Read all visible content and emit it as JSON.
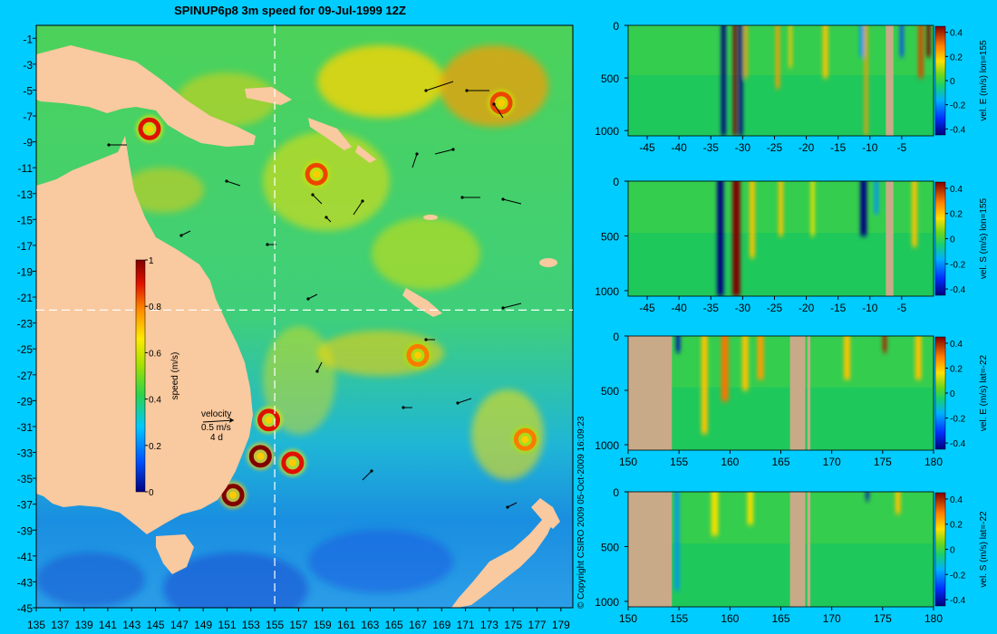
{
  "title": "SPINUP6p8 3m speed for 09-Jul-1999 12Z",
  "copyright": "© Copyright CSIRO 2009   05-Oct-2009 16:09:23",
  "colors": {
    "background": "#00ccff",
    "land": "#f9c99f",
    "section_land": "#c8aa88",
    "guide_line": "#ffffff"
  },
  "chart_data": [
    {
      "type": "heatmap",
      "name": "speed-map",
      "title": "SPINUP6p8 3m speed for 09-Jul-1999 12Z",
      "xlim": [
        135,
        180
      ],
      "ylim": [
        -45,
        0
      ],
      "xticks": [
        "135",
        "137",
        "139",
        "141",
        "143",
        "145",
        "147",
        "149",
        "151",
        "153",
        "155",
        "157",
        "159",
        "161",
        "163",
        "165",
        "167",
        "169",
        "171",
        "173",
        "175",
        "177",
        "179"
      ],
      "yticks": [
        "-1",
        "-3",
        "-5",
        "-7",
        "-9",
        "-11",
        "-13",
        "-15",
        "-17",
        "-19",
        "-21",
        "-23",
        "-25",
        "-27",
        "-29",
        "-31",
        "-33",
        "-35",
        "-37",
        "-39",
        "-41",
        "-43",
        "-45"
      ],
      "colorbar": {
        "label": "speed (m/s)",
        "range": [
          0,
          1
        ],
        "ticks": [
          "0",
          "0.2",
          "0.4",
          "0.6",
          "0.8",
          "1"
        ]
      },
      "velocity_legend": {
        "title": "velocity",
        "speed": "0.5 m/s",
        "duration": "4 d"
      },
      "guides": {
        "lon": 155,
        "lat": -22
      },
      "eddies": [
        {
          "lon": 144.5,
          "lat": -8.0,
          "speed": 0.9
        },
        {
          "lon": 153.8,
          "lat": -33.3,
          "speed": 1.0
        },
        {
          "lon": 151.5,
          "lat": -36.3,
          "speed": 1.0
        },
        {
          "lon": 154.5,
          "lat": -30.5,
          "speed": 0.9
        },
        {
          "lon": 156.5,
          "lat": -33.8,
          "speed": 0.9
        },
        {
          "lon": 158.5,
          "lat": -11.5,
          "speed": 0.85
        },
        {
          "lon": 174.0,
          "lat": -6.0,
          "speed": 0.85
        },
        {
          "lon": 176.0,
          "lat": -32.0,
          "speed": 0.8
        },
        {
          "lon": 167.0,
          "lat": -25.5,
          "speed": 0.8
        }
      ]
    },
    {
      "type": "heatmap",
      "name": "section-u-lon155",
      "colorbar_label": "vel. E (m/s) lon=155",
      "xlim": [
        -48,
        0
      ],
      "ylim": [
        1050,
        0
      ],
      "xticks": [
        "-45",
        "-40",
        "-35",
        "-30",
        "-25",
        "-20",
        "-15",
        "-10",
        "-5"
      ],
      "yticks": [
        "0",
        "500",
        "1000"
      ],
      "cticks": [
        "0.4",
        "0.2",
        "0",
        "-0.2",
        "-0.4"
      ],
      "crange": [
        -0.45,
        0.45
      ],
      "land": [
        {
          "x0": -7.5,
          "x1": -6.3,
          "depth": 1050
        }
      ],
      "bands": [
        {
          "x": -33.0,
          "v": -0.5,
          "d": 1050,
          "w": 0.7
        },
        {
          "x": -31.2,
          "v": 0.45,
          "d": 1050,
          "w": 0.6
        },
        {
          "x": -30.3,
          "v": -0.45,
          "d": 1050,
          "w": 0.6
        },
        {
          "x": -29.5,
          "v": 0.25,
          "d": 500,
          "w": 0.5
        },
        {
          "x": -24.5,
          "v": 0.25,
          "d": 600,
          "w": 0.6
        },
        {
          "x": -22.5,
          "v": 0.2,
          "d": 400,
          "w": 0.5
        },
        {
          "x": -17.0,
          "v": 0.2,
          "d": 500,
          "w": 0.8
        },
        {
          "x": -11.3,
          "v": -0.2,
          "d": 300,
          "w": 0.6
        },
        {
          "x": -10.6,
          "v": 0.25,
          "d": 1050,
          "w": 0.5
        },
        {
          "x": -5.0,
          "v": -0.3,
          "d": 300,
          "w": 0.5
        },
        {
          "x": -2.0,
          "v": 0.35,
          "d": 500,
          "w": 0.8
        },
        {
          "x": -0.8,
          "v": 0.45,
          "d": 300,
          "w": 0.6
        }
      ]
    },
    {
      "type": "heatmap",
      "name": "section-v-lon155",
      "colorbar_label": "vel. S (m/s) lon=155",
      "xlim": [
        -48,
        0
      ],
      "ylim": [
        1050,
        0
      ],
      "xticks": [
        "-45",
        "-40",
        "-35",
        "-30",
        "-25",
        "-20",
        "-15",
        "-10",
        "-5"
      ],
      "yticks": [
        "0",
        "500",
        "1000"
      ],
      "cticks": [
        "0.4",
        "0.2",
        "0",
        "-0.2",
        "-0.4"
      ],
      "crange": [
        -0.45,
        0.45
      ],
      "land": [
        {
          "x0": -7.5,
          "x1": -6.3,
          "depth": 1050
        }
      ],
      "bands": [
        {
          "x": -33.5,
          "v": -0.45,
          "d": 1050,
          "w": 1.0
        },
        {
          "x": -31.0,
          "v": 0.45,
          "d": 1050,
          "w": 1.2
        },
        {
          "x": -28.5,
          "v": 0.2,
          "d": 700,
          "w": 0.8
        },
        {
          "x": -24.0,
          "v": 0.2,
          "d": 500,
          "w": 0.7
        },
        {
          "x": -19.0,
          "v": 0.15,
          "d": 500,
          "w": 0.6
        },
        {
          "x": -11.0,
          "v": -0.45,
          "d": 500,
          "w": 1.0
        },
        {
          "x": -9.0,
          "v": -0.2,
          "d": 300,
          "w": 0.6
        },
        {
          "x": -3.0,
          "v": 0.2,
          "d": 600,
          "w": 0.8
        }
      ]
    },
    {
      "type": "heatmap",
      "name": "section-u-lat-22",
      "colorbar_label": "vel. E (m/s) lat=-22",
      "xlim": [
        150,
        180
      ],
      "ylim": [
        1050,
        0
      ],
      "xticks": [
        "150",
        "155",
        "160",
        "165",
        "170",
        "175",
        "180"
      ],
      "yticks": [
        "0",
        "500",
        "1000"
      ],
      "cticks": [
        "0.4",
        "0.2",
        "0",
        "-0.2",
        "-0.4"
      ],
      "crange": [
        -0.45,
        0.45
      ],
      "land": [
        {
          "x0": 150,
          "x1": 154.3,
          "depth": 1050
        },
        {
          "x0": 165.9,
          "x1": 167.4,
          "depth": 1050
        },
        {
          "x0": 167.6,
          "x1": 167.9,
          "depth": 1050
        }
      ],
      "bands": [
        {
          "x": 154.9,
          "v": -0.4,
          "d": 150,
          "w": 0.4
        },
        {
          "x": 157.5,
          "v": 0.2,
          "d": 900,
          "w": 0.6
        },
        {
          "x": 159.5,
          "v": 0.3,
          "d": 600,
          "w": 0.7
        },
        {
          "x": 161.5,
          "v": 0.2,
          "d": 500,
          "w": 0.6
        },
        {
          "x": 163.0,
          "v": 0.25,
          "d": 400,
          "w": 0.6
        },
        {
          "x": 171.5,
          "v": 0.2,
          "d": 400,
          "w": 0.6
        },
        {
          "x": 175.2,
          "v": 0.4,
          "d": 150,
          "w": 0.4
        },
        {
          "x": 178.5,
          "v": 0.2,
          "d": 400,
          "w": 0.6
        }
      ]
    },
    {
      "type": "heatmap",
      "name": "section-v-lat-22",
      "colorbar_label": "vel. S (m/s) lat=-22",
      "xlim": [
        150,
        180
      ],
      "ylim": [
        1050,
        0
      ],
      "xticks": [
        "150",
        "155",
        "160",
        "165",
        "170",
        "175",
        "180"
      ],
      "yticks": [
        "0",
        "500",
        "1000"
      ],
      "cticks": [
        "0.4",
        "0.2",
        "0",
        "-0.2",
        "-0.4"
      ],
      "crange": [
        -0.45,
        0.45
      ],
      "land": [
        {
          "x0": 150,
          "x1": 154.3,
          "depth": 1050
        },
        {
          "x0": 165.9,
          "x1": 167.4,
          "depth": 1050
        },
        {
          "x0": 167.6,
          "x1": 167.9,
          "depth": 1050
        }
      ],
      "bands": [
        {
          "x": 154.8,
          "v": -0.2,
          "d": 900,
          "w": 0.4
        },
        {
          "x": 158.5,
          "v": 0.15,
          "d": 400,
          "w": 0.7
        },
        {
          "x": 162.0,
          "v": 0.15,
          "d": 300,
          "w": 0.6
        },
        {
          "x": 173.5,
          "v": -0.4,
          "d": 80,
          "w": 0.3
        },
        {
          "x": 176.5,
          "v": 0.2,
          "d": 200,
          "w": 0.5
        }
      ]
    }
  ]
}
